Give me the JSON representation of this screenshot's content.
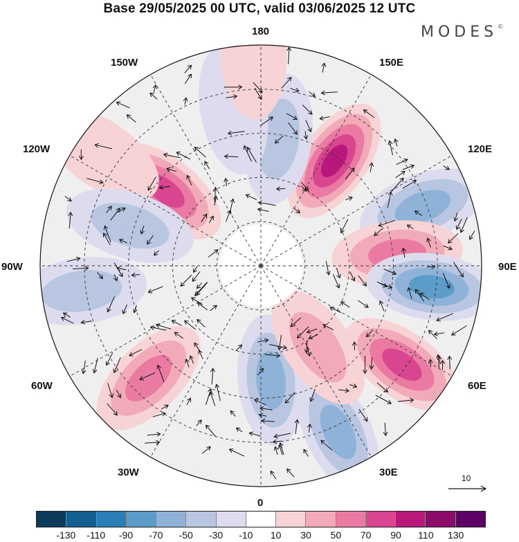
{
  "title": "Base 29/05/2025 00 UTC, valid 03/06/2025 12 UTC",
  "brand": "MODES",
  "brand_mark": "©",
  "longitude_labels": {
    "lon_180": "180",
    "lon_150e": "150E",
    "lon_120e": "120E",
    "lon_90e": "90E",
    "lon_60e": "60E",
    "lon_30e": "30E",
    "lon_0": "0",
    "lon_30w": "30W",
    "lon_60w": "60W",
    "lon_90w": "90W",
    "lon_120w": "120W",
    "lon_150w": "150W"
  },
  "reference_vector": {
    "label": "10"
  },
  "colorbar": {
    "colors": [
      "#0b3a5a",
      "#135f91",
      "#2a7fb8",
      "#5b9cc9",
      "#8fb3d8",
      "#b8c6e2",
      "#dcdcee",
      "#ffffff",
      "#f7d3d6",
      "#f2a9b8",
      "#eb7aa3",
      "#d9458f",
      "#b8187a",
      "#8c0a6a",
      "#5e0066"
    ],
    "ticks": [
      "-130",
      "-110",
      "-90",
      "-70",
      "-50",
      "-30",
      "-10",
      "10",
      "30",
      "50",
      "70",
      "90",
      "110",
      "130"
    ]
  },
  "anomaly_centers": [
    {
      "lon_deg": 145,
      "colat": 0.58,
      "value": 110
    },
    {
      "lon_deg": -128,
      "colat": 0.55,
      "value": 80
    },
    {
      "lon_deg": 110,
      "colat": 0.78,
      "value": -60
    },
    {
      "lon_deg": 95,
      "colat": 0.62,
      "value": 60
    },
    {
      "lon_deg": 83,
      "colat": 0.78,
      "value": -80
    },
    {
      "lon_deg": 55,
      "colat": 0.78,
      "value": 85
    },
    {
      "lon_deg": 25,
      "colat": 0.83,
      "value": -70
    },
    {
      "lon_deg": 5,
      "colat": 0.52,
      "value": -70
    },
    {
      "lon_deg": -45,
      "colat": 0.72,
      "value": 75
    },
    {
      "lon_deg": -82,
      "colat": 0.82,
      "value": -55
    },
    {
      "lon_deg": -125,
      "colat": 0.88,
      "value": 35
    },
    {
      "lon_deg": -107,
      "colat": 0.62,
      "value": -55
    },
    {
      "lon_deg": 172,
      "colat": 0.58,
      "value": -50
    },
    {
      "lon_deg": -170,
      "colat": 0.72,
      "value": -25
    },
    {
      "lon_deg": 35,
      "colat": 0.45,
      "value": 40
    },
    {
      "lon_deg": -178,
      "colat": 0.96,
      "value": 30
    }
  ]
}
